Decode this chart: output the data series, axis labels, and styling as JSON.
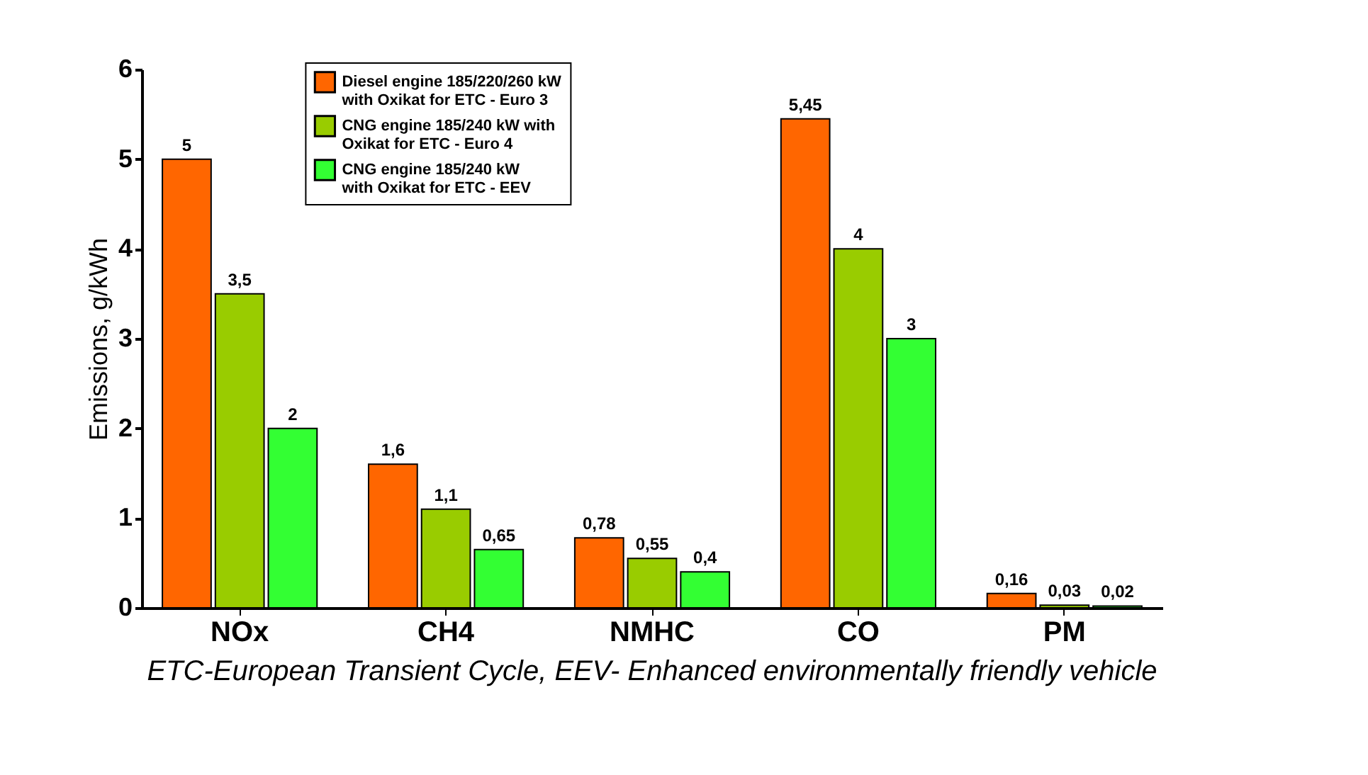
{
  "chart_data": {
    "type": "bar",
    "ylabel": "Emissions, g/kWh",
    "categories": [
      "NOx",
      "CH4",
      "NMHC",
      "CO",
      "PM"
    ],
    "series": [
      {
        "name": "Diesel engine 185/220/260 kW with Oxikat for ETC - Euro 3",
        "color": "#ff6600",
        "values": [
          5,
          1.6,
          0.78,
          5.45,
          0.16
        ],
        "value_labels": [
          "5",
          "1,6",
          "0,78",
          "5,45",
          "0,16"
        ]
      },
      {
        "name": "CNG engine 185/240 kW with Oxikat for ETC - Euro 4",
        "color": "#99cc00",
        "values": [
          3.5,
          1.1,
          0.55,
          4,
          0.03
        ],
        "value_labels": [
          "3,5",
          "1,1",
          "0,55",
          "4",
          "0,03"
        ]
      },
      {
        "name": "CNG engine 185/240 kW with Oxikat for ETC - EEV",
        "color": "#33ff33",
        "values": [
          2,
          0.65,
          0.4,
          3,
          0.02
        ],
        "value_labels": [
          "2",
          "0,65",
          "0,4",
          "3",
          "0,02"
        ]
      }
    ],
    "ylim": [
      0,
      6
    ],
    "yticks": [
      0,
      1,
      2,
      3,
      4,
      5,
      6
    ],
    "grid": false,
    "legend": "top",
    "annotations": [
      "ETC-European Transient Cycle, EEV- Enhanced environmentally friendly vehicle"
    ]
  }
}
